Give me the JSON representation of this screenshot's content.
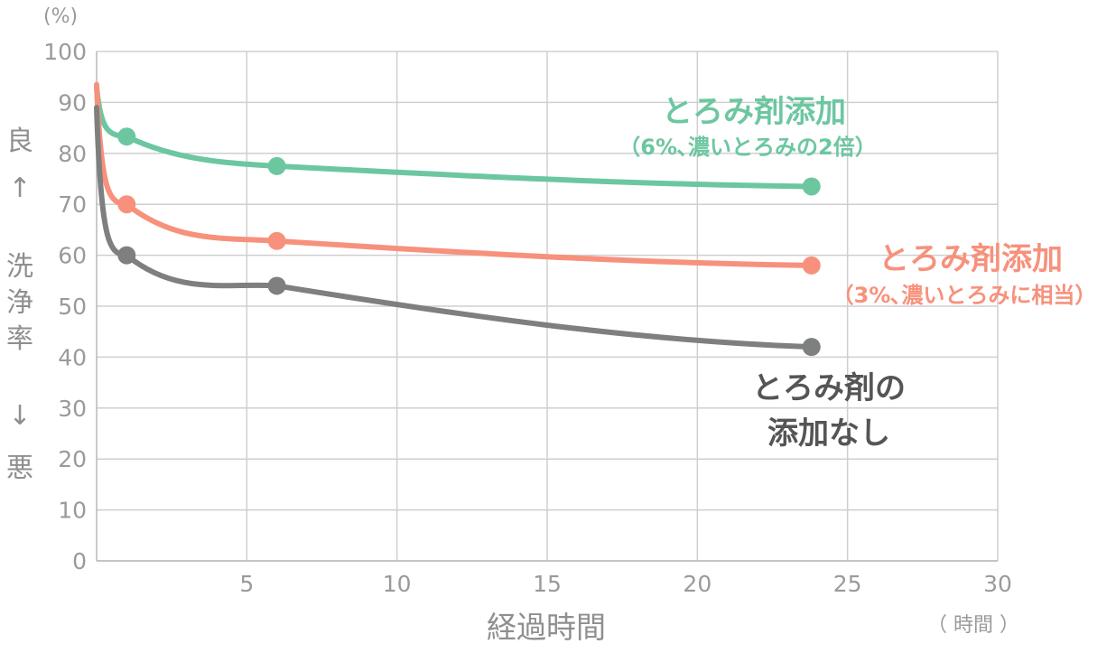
{
  "chart_data": {
    "type": "line",
    "xlabel": "経過時間",
    "xunit": "（ 時間 ）",
    "yunit": "(%)",
    "ylabel_top": "良",
    "ylabel_arrow_up": "↑",
    "ylabel_chars": [
      "洗",
      "浄",
      "率"
    ],
    "ylabel_arrow_down": "↓",
    "ylabel_bottom": "悪",
    "xlim": [
      0,
      30
    ],
    "ylim": [
      0,
      100
    ],
    "x_ticks": [
      "5",
      "10",
      "15",
      "20",
      "25",
      "30"
    ],
    "y_ticks": [
      "0",
      "10",
      "20",
      "30",
      "40",
      "50",
      "60",
      "70",
      "80",
      "90",
      "100"
    ],
    "grid": true,
    "series": [
      {
        "name": "とろみ剤添加",
        "note": "（6%､濃いとろみの2倍）",
        "color": "#6cc7a0",
        "start": [
          0,
          93
        ],
        "x": [
          1,
          6,
          23.8
        ],
        "values": [
          83.3,
          77.5,
          73.5
        ]
      },
      {
        "name": "とろみ剤添加",
        "note": "（3%､濃いとろみに相当）",
        "color": "#f7917c",
        "start": [
          0,
          93.5
        ],
        "x": [
          1,
          6,
          23.8
        ],
        "values": [
          70,
          62.8,
          58
        ]
      },
      {
        "name_lines": [
          "とろみ剤の",
          "添加なし"
        ],
        "color": "#7d807e",
        "start": [
          0,
          89
        ],
        "x": [
          1,
          6,
          23.8
        ],
        "values": [
          60,
          54,
          42
        ]
      }
    ]
  }
}
